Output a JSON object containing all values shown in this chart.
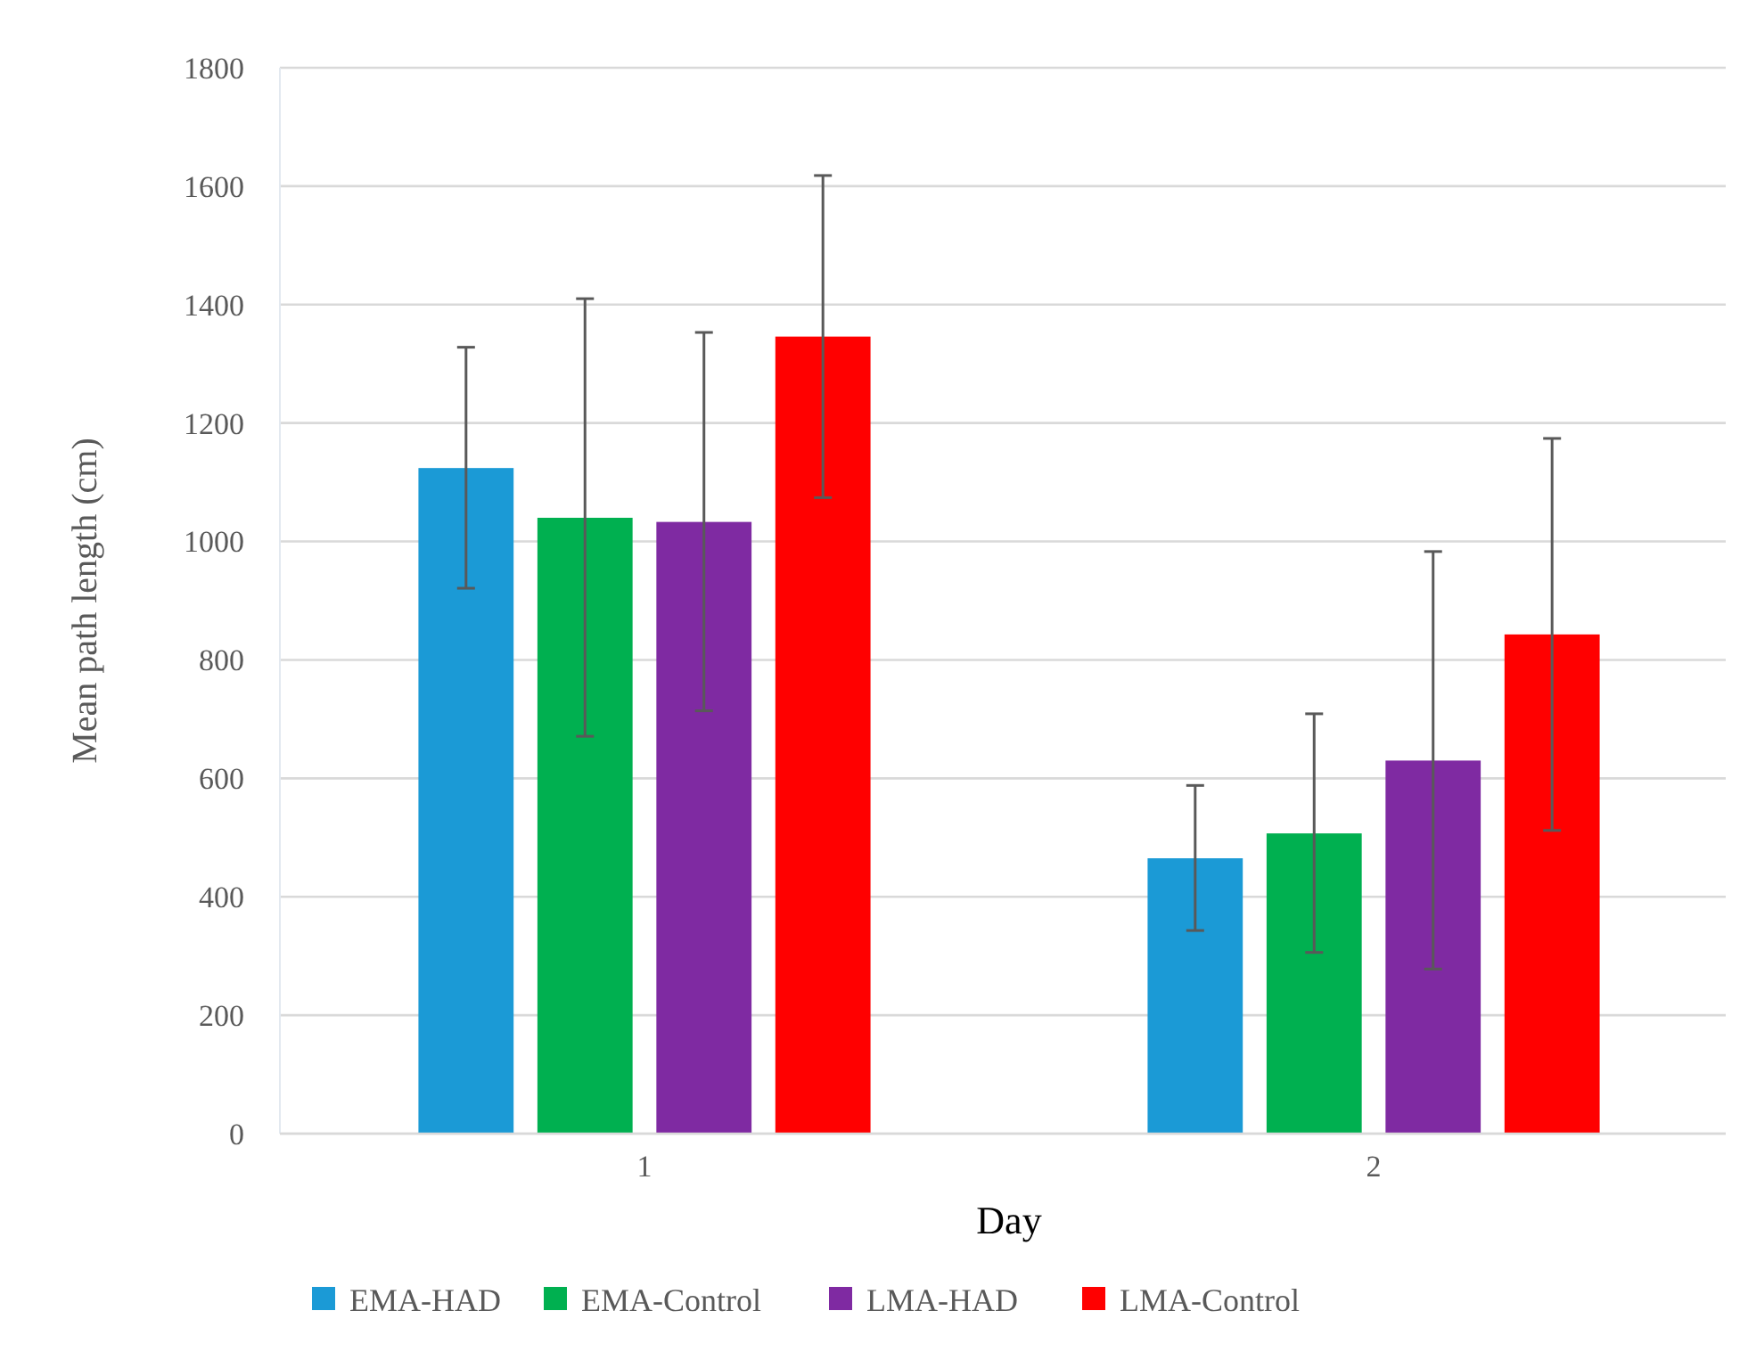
{
  "chart_data": {
    "type": "bar",
    "xlabel": "Day",
    "ylabel": "Mean path length (cm)",
    "categories": [
      "1",
      "2"
    ],
    "series": [
      {
        "name": "EMA-HAD",
        "color": "#1b9ad6",
        "values": [
          1124,
          465
        ],
        "errors": [
          [
            921,
            1328
          ],
          [
            343,
            588
          ]
        ]
      },
      {
        "name": "EMA-Control",
        "color": "#00b050",
        "values": [
          1040,
          507
        ],
        "errors": [
          [
            671,
            1410
          ],
          [
            306,
            709
          ]
        ]
      },
      {
        "name": "LMA-HAD",
        "color": "#7f2aa2",
        "values": [
          1033,
          630
        ],
        "errors": [
          [
            714,
            1353
          ],
          [
            278,
            983
          ]
        ]
      },
      {
        "name": "LMA-Control",
        "color": "#ff0000",
        "values": [
          1346,
          843
        ],
        "errors": [
          [
            1074,
            1618
          ],
          [
            512,
            1174
          ]
        ]
      }
    ],
    "ylim": [
      0,
      1800
    ],
    "yticks": [
      0,
      200,
      400,
      600,
      800,
      1000,
      1200,
      1400,
      1600,
      1800
    ],
    "grid": "y",
    "legend": "bottom"
  }
}
